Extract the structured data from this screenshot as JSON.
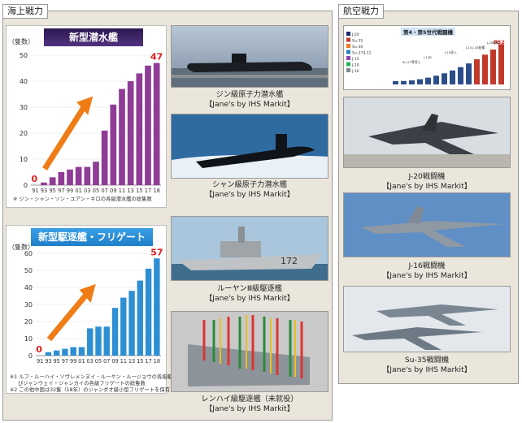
{
  "sea": {
    "label": "海上戦力",
    "submarine": {
      "title": "新型潜水艦",
      "unit": "（隻数）",
      "note": "※ ジン・シャン・ソン・ユアン・キロの各級潜水艦の総隻数"
    },
    "destroyer": {
      "title": "新型駆逐艦・フリゲート",
      "unit": "（隻数）",
      "note1": "※1 ルフ・ルーハイ・ソヴレメンヌイ・ルーヤン・ルージョウの各級駆逐艦及",
      "note1b": "びジャンウェイ・ジャンカイの各級フリゲートの総隻数",
      "note2": "※2 この他中国は32隻（18年）のジャンダオ級小型フリゲートを保有"
    },
    "photos": [
      {
        "name": "ジン級原子力潜水艦",
        "credit": "【Jane's by IHS Markit】"
      },
      {
        "name": "シャン級原子力潜水艦",
        "credit": "【Jane's by IHS Markit】"
      },
      {
        "name": "ルーヤンⅢ級駆逐艦",
        "credit": "【Jane's by IHS Markit】",
        "hull": "172"
      },
      {
        "name": "レンハイ級駆逐艦（未就役）",
        "credit": "【Jane's by IHS Markit】"
      }
    ]
  },
  "air": {
    "label": "航空戦力",
    "inset": {
      "title": "第4・第5世代戦闘機",
      "rows": [
        "J-20",
        "Su-35",
        "Su-30",
        "Su-27/J-11",
        "J-15",
        "J-10",
        "J-16"
      ],
      "peak_label": "852",
      "annotations": [
        "Su-27等導入",
        "J-11B",
        "J-10導入",
        "J-15,J-16配備",
        "J-20配備"
      ]
    },
    "photos": [
      {
        "name": "J-20戦闘機",
        "credit": "【Jane's by IHS Markit】"
      },
      {
        "name": "J-16戦闘機",
        "credit": "【Jane's by IHS Markit】"
      },
      {
        "name": "Su-35戦闘機",
        "credit": "【Jane's by IHS Markit】"
      }
    ]
  },
  "chart_data": [
    {
      "type": "bar",
      "title": "新型潜水艦",
      "ylabel": "（隻数）",
      "categories": [
        "91",
        "93",
        "95",
        "97",
        "99",
        "01",
        "03",
        "05",
        "07",
        "09",
        "11",
        "13",
        "15",
        "17",
        "18"
      ],
      "values": [
        0,
        1,
        3,
        5,
        6,
        7,
        7,
        9,
        21,
        31,
        37,
        40,
        43,
        46,
        47
      ],
      "ylim": [
        0,
        50
      ],
      "yticks": [
        0,
        10,
        20,
        30,
        40,
        50
      ],
      "labels": {
        "first": "0",
        "last": "47"
      },
      "color": "#8e3c96"
    },
    {
      "type": "bar",
      "title": "新型駆逐艦・フリゲート",
      "ylabel": "（隻数）",
      "categories": [
        "91",
        "93",
        "95",
        "97",
        "99",
        "01",
        "03",
        "05",
        "07",
        "09",
        "11",
        "13",
        "15",
        "17",
        "18"
      ],
      "values": [
        0,
        2,
        3,
        4,
        5,
        5,
        16,
        17,
        17,
        28,
        34,
        38,
        44,
        51,
        57
      ],
      "ylim": [
        0,
        60
      ],
      "yticks": [
        0,
        10,
        20,
        30,
        40,
        50,
        60
      ],
      "labels": {
        "first": "0",
        "last": "57"
      },
      "color": "#2d8fd2"
    }
  ]
}
